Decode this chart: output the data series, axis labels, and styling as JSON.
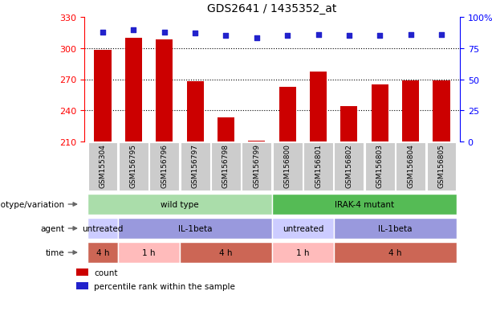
{
  "title": "GDS2641 / 1435352_at",
  "samples": [
    "GSM155304",
    "GSM156795",
    "GSM156796",
    "GSM156797",
    "GSM156798",
    "GSM156799",
    "GSM156800",
    "GSM156801",
    "GSM156802",
    "GSM156803",
    "GSM156804",
    "GSM156805"
  ],
  "counts": [
    298,
    310,
    308,
    268,
    233,
    211,
    263,
    277,
    244,
    265,
    269,
    269
  ],
  "percentile_ranks": [
    88,
    90,
    88,
    87,
    85,
    83,
    85,
    86,
    85,
    85,
    86,
    86
  ],
  "ylim_left": [
    210,
    330
  ],
  "ylim_right": [
    0,
    100
  ],
  "yticks_left": [
    210,
    240,
    270,
    300,
    330
  ],
  "yticks_right": [
    0,
    25,
    50,
    75,
    100
  ],
  "bar_color": "#cc0000",
  "dot_color": "#2222cc",
  "grid_color": "#000000",
  "annotation_rows": [
    {
      "label": "genotype/variation",
      "groups": [
        {
          "text": "wild type",
          "start": 0,
          "end": 5,
          "color": "#aaddaa"
        },
        {
          "text": "IRAK-4 mutant",
          "start": 6,
          "end": 11,
          "color": "#55bb55"
        }
      ]
    },
    {
      "label": "agent",
      "groups": [
        {
          "text": "untreated",
          "start": 0,
          "end": 0,
          "color": "#ccccff"
        },
        {
          "text": "IL-1beta",
          "start": 1,
          "end": 5,
          "color": "#9999dd"
        },
        {
          "text": "untreated",
          "start": 6,
          "end": 7,
          "color": "#ccccff"
        },
        {
          "text": "IL-1beta",
          "start": 8,
          "end": 11,
          "color": "#9999dd"
        }
      ]
    },
    {
      "label": "time",
      "groups": [
        {
          "text": "4 h",
          "start": 0,
          "end": 0,
          "color": "#cc6655"
        },
        {
          "text": "1 h",
          "start": 1,
          "end": 2,
          "color": "#ffbbbb"
        },
        {
          "text": "4 h",
          "start": 3,
          "end": 5,
          "color": "#cc6655"
        },
        {
          "text": "1 h",
          "start": 6,
          "end": 7,
          "color": "#ffbbbb"
        },
        {
          "text": "4 h",
          "start": 8,
          "end": 11,
          "color": "#cc6655"
        }
      ]
    }
  ],
  "legend": [
    {
      "label": "count",
      "color": "#cc0000"
    },
    {
      "label": "percentile rank within the sample",
      "color": "#2222cc"
    }
  ],
  "sample_bg_color": "#cccccc"
}
